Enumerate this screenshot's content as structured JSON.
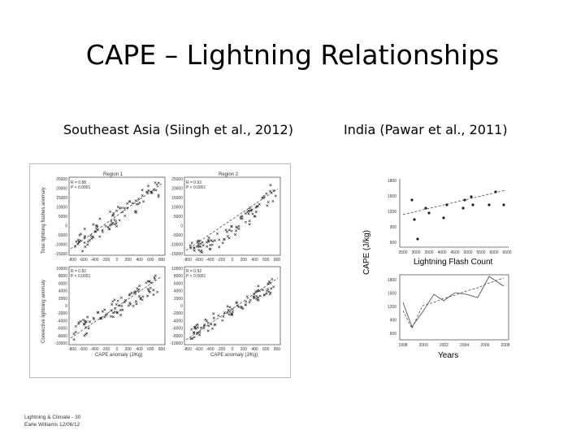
{
  "slide": {
    "title": "CAPE – Lightning Relationships",
    "subtitle_left": "Southeast Asia (Siingh et al., 2012)",
    "subtitle_right": "India (Pawar et al., 2011)",
    "footer_line1": "Lightning & Climate - 30",
    "footer_line2": "Earle Williams 12/06/12"
  },
  "left_figure": {
    "panel_titles": [
      "Region 1",
      "Region 2"
    ],
    "y_label_top": "Total lightning flashes anomaly",
    "y_label_bottom": "Convective lightning anomaly",
    "x_label": "CAPE anomaly (J/Kg)",
    "stats": [
      {
        "r": "R = 0.88",
        "p": "P < 0.0001"
      },
      {
        "r": "R = 0.93",
        "p": "P < 0.0001"
      },
      {
        "r": "R = 0.82",
        "p": "P < 0.0001"
      },
      {
        "r": "R = 0.92",
        "p": "P < 0.0001"
      }
    ],
    "y_ticks_top": [
      "25000",
      "20000",
      "15000",
      "10000",
      "5000",
      "0",
      "-5000",
      "-10000",
      "-15000"
    ],
    "y_ticks_bottom": [
      "10000",
      "8000",
      "6000",
      "4000",
      "2000",
      "0",
      "-2000",
      "-4000",
      "-6000",
      "-8000",
      "-10000"
    ],
    "x_ticks": [
      "-800",
      "-600",
      "-400",
      "-200",
      "0",
      "200",
      "400",
      "600",
      "800"
    ]
  },
  "right_figure": {
    "y_label": "CAPE (J/kg)",
    "mid_label": "Lightning Flash Count",
    "x_label": "Years",
    "top_y_ticks": [
      "1800",
      "1500",
      "1200",
      "900",
      "600"
    ],
    "top_x_ticks": [
      "2500",
      "3000",
      "3500",
      "4000",
      "4500",
      "5000",
      "5500",
      "6000",
      "6500"
    ],
    "bottom_y_ticks": [
      "1800",
      "1500",
      "1200",
      "900",
      "600"
    ],
    "bottom_x_ticks": [
      "1998",
      "2000",
      "2002",
      "2004",
      "2006",
      "2008"
    ]
  }
}
